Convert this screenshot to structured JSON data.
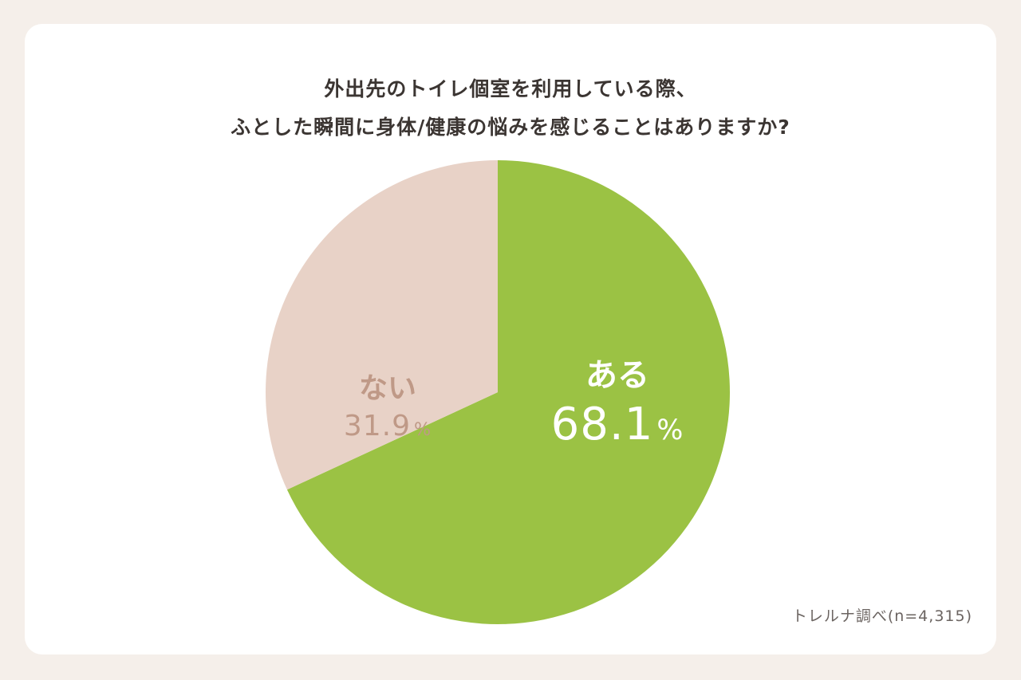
{
  "chart_data": {
    "type": "pie",
    "title_lines": [
      "外出先のトイレ個室を利用している際、",
      "ふとした瞬間に身体/健康の悩みを感じることはありますか?"
    ],
    "slices": [
      {
        "label": "ある",
        "value": 68.1,
        "display": "68.1",
        "unit": "%",
        "color": "#9bc244"
      },
      {
        "label": "ない",
        "value": 31.9,
        "display": "31.9",
        "unit": "%",
        "color": "#e8d2c7"
      }
    ],
    "start": "top, clockwise"
  },
  "source_note": "トレルナ調べ(n=4,315)",
  "colors": {
    "background": "#f5efea",
    "card": "#ffffff",
    "title_text": "#3b3532",
    "no_label": "#bf9987",
    "yes_label": "#ffffff"
  }
}
